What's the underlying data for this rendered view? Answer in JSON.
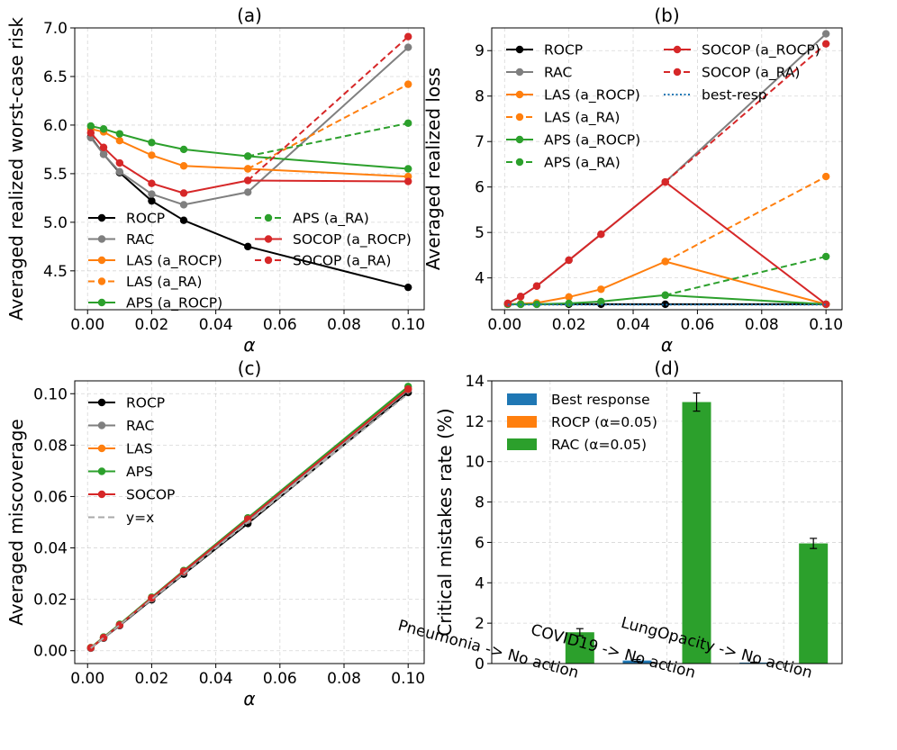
{
  "colors": {
    "ROCP": "#000000",
    "RAC": "#7f7f7f",
    "LAS": "#ff7f0e",
    "APS": "#2ca02c",
    "SOCOP": "#d62728",
    "best_resp": "#1f77b4",
    "yx": "#a9a9a9",
    "bar_best": "#1f77b4",
    "bar_rocp": "#ff7f0e",
    "bar_rac": "#2ca02c"
  },
  "chart_data": [
    {
      "id": "a",
      "type": "line",
      "title": "(a)",
      "xlabel": "α",
      "ylabel": "Averaged realized worst-case risk",
      "xlim": [
        -0.004,
        0.105
      ],
      "ylim": [
        4.1,
        7.0
      ],
      "xticks": [
        0.0,
        0.02,
        0.04,
        0.06,
        0.08,
        0.1
      ],
      "xtick_labels": [
        "0.00",
        "0.02",
        "0.04",
        "0.06",
        "0.08",
        "0.10"
      ],
      "yticks": [
        4.5,
        5.0,
        5.5,
        6.0,
        6.5,
        7.0
      ],
      "ytick_labels": [
        "4.5",
        "5.0",
        "5.5",
        "6.0",
        "6.5",
        "7.0"
      ],
      "grid": true,
      "legend_position": "lower-left",
      "legend_columns": 2,
      "x": [
        0.001,
        0.005,
        0.01,
        0.02,
        0.03,
        0.05,
        0.1
      ],
      "series": [
        {
          "name": "ROCP",
          "color_key": "ROCP",
          "dashed": false,
          "x": [
            0.001,
            0.005,
            0.01,
            0.02,
            0.03,
            0.05,
            0.1
          ],
          "values": [
            5.88,
            5.7,
            5.51,
            5.22,
            5.02,
            4.75,
            4.33
          ]
        },
        {
          "name": "RAC",
          "color_key": "RAC",
          "dashed": false,
          "x": [
            0.001,
            0.005,
            0.01,
            0.02,
            0.03,
            0.05,
            0.1
          ],
          "values": [
            5.87,
            5.7,
            5.52,
            5.29,
            5.18,
            5.31,
            6.8
          ]
        },
        {
          "name": "LAS (a_ROCP)",
          "color_key": "LAS",
          "dashed": false,
          "x": [
            0.001,
            0.005,
            0.01,
            0.02,
            0.03,
            0.05,
            0.1
          ],
          "values": [
            5.96,
            5.93,
            5.84,
            5.69,
            5.58,
            5.55,
            5.47
          ]
        },
        {
          "name": "LAS (a_RA)",
          "color_key": "LAS",
          "dashed": true,
          "x": [
            0.05,
            0.1
          ],
          "values": [
            5.55,
            6.42
          ]
        },
        {
          "name": "APS (a_ROCP)",
          "color_key": "APS",
          "dashed": false,
          "x": [
            0.001,
            0.005,
            0.01,
            0.02,
            0.03,
            0.05,
            0.1
          ],
          "values": [
            5.99,
            5.96,
            5.91,
            5.82,
            5.75,
            5.68,
            5.55
          ]
        },
        {
          "name": "APS (a_RA)",
          "color_key": "APS",
          "dashed": true,
          "x": [
            0.05,
            0.1
          ],
          "values": [
            5.68,
            6.02
          ]
        },
        {
          "name": "SOCOP (a_ROCP)",
          "color_key": "SOCOP",
          "dashed": false,
          "x": [
            0.001,
            0.005,
            0.01,
            0.02,
            0.03,
            0.05,
            0.1
          ],
          "values": [
            5.92,
            5.77,
            5.61,
            5.4,
            5.3,
            5.43,
            5.42
          ]
        },
        {
          "name": "SOCOP (a_RA)",
          "color_key": "SOCOP",
          "dashed": true,
          "x": [
            0.05,
            0.1
          ],
          "values": [
            5.43,
            6.91
          ]
        }
      ]
    },
    {
      "id": "b",
      "type": "line",
      "title": "(b)",
      "xlabel": "α",
      "ylabel": "Averaged realized loss",
      "xlim": [
        -0.004,
        0.105
      ],
      "ylim": [
        3.3,
        9.5
      ],
      "xticks": [
        0.0,
        0.02,
        0.04,
        0.06,
        0.08,
        0.1
      ],
      "xtick_labels": [
        "0.00",
        "0.02",
        "0.04",
        "0.06",
        "0.08",
        "0.10"
      ],
      "yticks": [
        4,
        5,
        6,
        7,
        8,
        9
      ],
      "ytick_labels": [
        "4",
        "5",
        "6",
        "7",
        "8",
        "9"
      ],
      "grid": true,
      "legend_position": "upper-left",
      "legend_columns": 2,
      "series": [
        {
          "name": "ROCP",
          "color_key": "ROCP",
          "dashed": false,
          "x": [
            0.001,
            0.005,
            0.01,
            0.02,
            0.03,
            0.05,
            0.1
          ],
          "values": [
            3.42,
            3.42,
            3.42,
            3.42,
            3.42,
            3.42,
            3.42
          ]
        },
        {
          "name": "RAC",
          "color_key": "RAC",
          "dashed": false,
          "x": [
            0.001,
            0.005,
            0.01,
            0.02,
            0.03,
            0.05,
            0.1
          ],
          "values": [
            3.44,
            3.59,
            3.82,
            4.39,
            4.96,
            6.11,
            9.37
          ]
        },
        {
          "name": "LAS (a_ROCP)",
          "color_key": "LAS",
          "dashed": false,
          "x": [
            0.001,
            0.005,
            0.01,
            0.02,
            0.03,
            0.05,
            0.1
          ],
          "values": [
            3.42,
            3.43,
            3.45,
            3.58,
            3.75,
            4.36,
            3.42
          ]
        },
        {
          "name": "LAS (a_RA)",
          "color_key": "LAS",
          "dashed": true,
          "x": [
            0.05,
            0.1
          ],
          "values": [
            4.36,
            6.23
          ]
        },
        {
          "name": "APS (a_ROCP)",
          "color_key": "APS",
          "dashed": false,
          "x": [
            0.001,
            0.005,
            0.01,
            0.02,
            0.03,
            0.05,
            0.1
          ],
          "values": [
            3.42,
            3.42,
            3.42,
            3.44,
            3.48,
            3.62,
            3.42
          ]
        },
        {
          "name": "APS (a_RA)",
          "color_key": "APS",
          "dashed": true,
          "x": [
            0.05,
            0.1
          ],
          "values": [
            3.62,
            4.47
          ]
        },
        {
          "name": "SOCOP (a_ROCP)",
          "color_key": "SOCOP",
          "dashed": false,
          "x": [
            0.001,
            0.005,
            0.01,
            0.02,
            0.03,
            0.05,
            0.1
          ],
          "values": [
            3.44,
            3.59,
            3.82,
            4.39,
            4.96,
            6.11,
            3.42
          ]
        },
        {
          "name": "SOCOP (a_RA)",
          "color_key": "SOCOP",
          "dashed": true,
          "x": [
            0.05,
            0.1
          ],
          "values": [
            6.11,
            9.15
          ]
        },
        {
          "name": "best-resp",
          "color_key": "best_resp",
          "dashed": "dotted",
          "nomarkers": true,
          "x": [
            0.001,
            0.1
          ],
          "values": [
            3.41,
            3.41
          ]
        }
      ]
    },
    {
      "id": "c",
      "type": "line",
      "title": "(c)",
      "xlabel": "α",
      "ylabel": "Averaged miscoverage",
      "xlim": [
        -0.004,
        0.105
      ],
      "ylim": [
        -0.005,
        0.105
      ],
      "xticks": [
        0.0,
        0.02,
        0.04,
        0.06,
        0.08,
        0.1
      ],
      "xtick_labels": [
        "0.00",
        "0.02",
        "0.04",
        "0.06",
        "0.08",
        "0.10"
      ],
      "yticks": [
        0.0,
        0.02,
        0.04,
        0.06,
        0.08,
        0.1
      ],
      "ytick_labels": [
        "0.00",
        "0.02",
        "0.04",
        "0.06",
        "0.08",
        "0.10"
      ],
      "grid": true,
      "legend_position": "upper-left",
      "legend_columns": 1,
      "series": [
        {
          "name": "ROCP",
          "color_key": "ROCP",
          "dashed": false,
          "x": [
            0.001,
            0.005,
            0.01,
            0.02,
            0.03,
            0.05,
            0.1
          ],
          "values": [
            0.001,
            0.0049,
            0.0098,
            0.0198,
            0.0298,
            0.0495,
            0.1005
          ]
        },
        {
          "name": "RAC",
          "color_key": "RAC",
          "dashed": false,
          "x": [
            0.001,
            0.005,
            0.01,
            0.02,
            0.03,
            0.05,
            0.1
          ],
          "values": [
            0.001,
            0.005,
            0.01,
            0.0202,
            0.0305,
            0.0508,
            0.1015
          ]
        },
        {
          "name": "LAS",
          "color_key": "LAS",
          "dashed": false,
          "x": [
            0.001,
            0.005,
            0.01,
            0.02,
            0.03,
            0.05,
            0.1
          ],
          "values": [
            0.0012,
            0.0052,
            0.0102,
            0.0207,
            0.031,
            0.0515,
            0.102
          ]
        },
        {
          "name": "APS",
          "color_key": "APS",
          "dashed": false,
          "x": [
            0.001,
            0.005,
            0.01,
            0.02,
            0.03,
            0.05,
            0.1
          ],
          "values": [
            0.0012,
            0.0053,
            0.0103,
            0.0208,
            0.0312,
            0.0517,
            0.1028
          ]
        },
        {
          "name": "SOCOP",
          "color_key": "SOCOP",
          "dashed": false,
          "x": [
            0.001,
            0.005,
            0.01,
            0.02,
            0.03,
            0.05,
            0.1
          ],
          "values": [
            0.0011,
            0.0051,
            0.01,
            0.0205,
            0.0309,
            0.0512,
            0.1018
          ]
        },
        {
          "name": "y=x",
          "color_key": "yx",
          "dashed": true,
          "nomarkers": true,
          "x": [
            0.001,
            0.1
          ],
          "values": [
            0.001,
            0.1
          ]
        }
      ]
    },
    {
      "id": "d",
      "type": "bar",
      "title": "(d)",
      "xlabel": "",
      "ylabel": "Critical mistakes rate (%)",
      "ylim": [
        0,
        14
      ],
      "yticks": [
        0,
        2,
        4,
        6,
        8,
        10,
        12,
        14
      ],
      "ytick_labels": [
        "0",
        "2",
        "4",
        "6",
        "8",
        "10",
        "12",
        "14"
      ],
      "grid": true,
      "legend_position": "upper-left",
      "categories": [
        "Pneumonia -> No action",
        "COVID19 -> No action",
        "LungOpacity -> No action"
      ],
      "series": [
        {
          "name": "Best response",
          "color_key": "bar_best",
          "values": [
            0.0,
            0.15,
            0.05
          ],
          "errors": [
            0.0,
            0.05,
            0.02
          ]
        },
        {
          "name": "ROCP (α=0.05)",
          "color_key": "bar_rocp",
          "values": [
            0.0,
            0.0,
            0.0
          ],
          "errors": [
            0.0,
            0.0,
            0.0
          ]
        },
        {
          "name": "RAC (α=0.05)",
          "color_key": "bar_rac",
          "values": [
            1.55,
            12.95,
            5.95
          ],
          "errors": [
            0.18,
            0.45,
            0.25
          ]
        }
      ]
    }
  ]
}
